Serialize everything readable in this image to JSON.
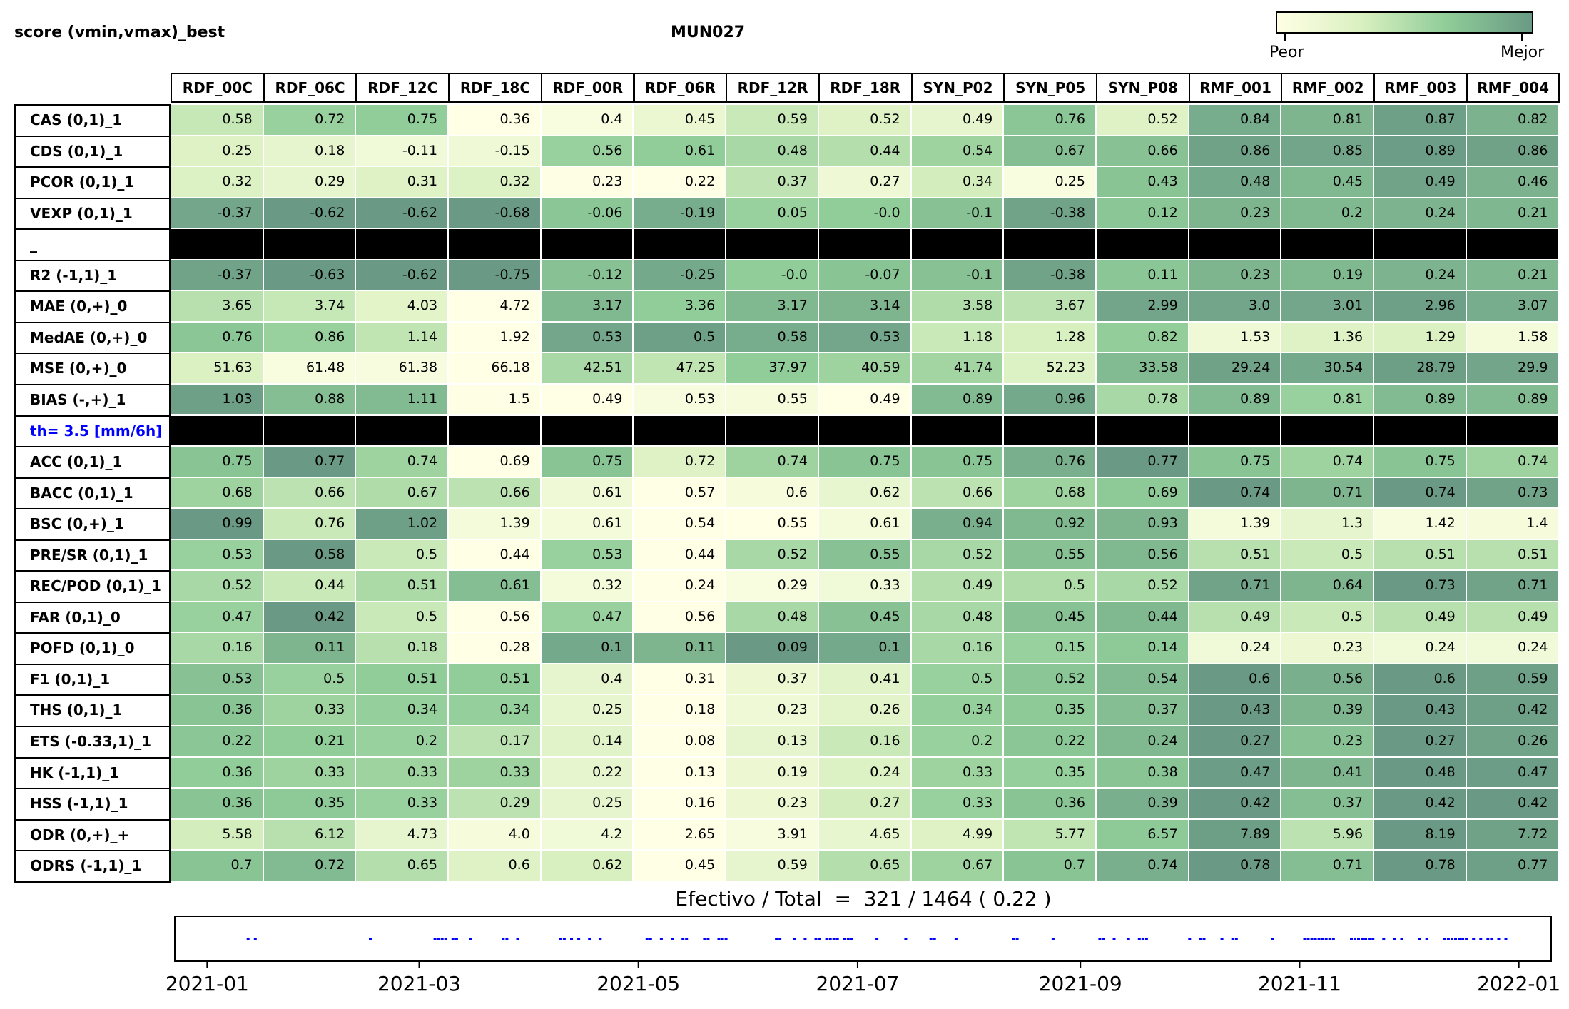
{
  "header": {
    "left_title": "score (vmin,vmax)_best",
    "center_title": "MUN027"
  },
  "colorbar": {
    "low_label": "Peor",
    "high_label": "Mejor",
    "colors": [
      "#ffffe5",
      "#d9f0c0",
      "#8fcc98",
      "#6a9a85"
    ]
  },
  "chart_data": {
    "type": "heatmap",
    "columns": [
      "RDF_00C",
      "RDF_06C",
      "RDF_12C",
      "RDF_18C",
      "RDF_00R",
      "RDF_06R",
      "RDF_12R",
      "RDF_18R",
      "SYN_P02",
      "SYN_P05",
      "SYN_P08",
      "RMF_001",
      "RMF_002",
      "RMF_003",
      "RMF_004"
    ],
    "rows": [
      {
        "label": "CAS (0,1)_1",
        "values": [
          "0.58",
          "0.72",
          "0.75",
          "0.36",
          "0.4",
          "0.45",
          "0.59",
          "0.52",
          "0.49",
          "0.76",
          "0.52",
          "0.84",
          "0.81",
          "0.87",
          "0.82"
        ],
        "shades": [
          0.42,
          0.62,
          0.66,
          0.0,
          0.05,
          0.18,
          0.4,
          0.28,
          0.22,
          0.7,
          0.28,
          0.88,
          0.82,
          0.96,
          0.84
        ]
      },
      {
        "label": "CDS (0,1)_1",
        "values": [
          "0.25",
          "0.18",
          "-0.11",
          "-0.15",
          "0.56",
          "0.61",
          "0.48",
          "0.44",
          "0.54",
          "0.67",
          "0.66",
          "0.86",
          "0.85",
          "0.89",
          "0.86"
        ],
        "shades": [
          0.28,
          0.22,
          0.12,
          0.14,
          0.62,
          0.66,
          0.56,
          0.5,
          0.6,
          0.76,
          0.74,
          0.95,
          0.93,
          0.98,
          0.95
        ]
      },
      {
        "label": "PCOR (0,1)_1",
        "values": [
          "0.32",
          "0.29",
          "0.31",
          "0.32",
          "0.23",
          "0.22",
          "0.37",
          "0.27",
          "0.34",
          "0.25",
          "0.43",
          "0.48",
          "0.45",
          "0.49",
          "0.46"
        ],
        "shades": [
          0.3,
          0.22,
          0.28,
          0.3,
          0.02,
          0.0,
          0.45,
          0.15,
          0.36,
          0.05,
          0.72,
          0.9,
          0.8,
          0.94,
          0.84
        ]
      },
      {
        "label": "VEXP (0,1)_1",
        "values": [
          "-0.37",
          "-0.62",
          "-0.62",
          "-0.68",
          "-0.06",
          "-0.19",
          "0.05",
          "-0.0",
          "-0.1",
          "-0.38",
          "0.12",
          "0.23",
          "0.2",
          "0.24",
          "0.21"
        ],
        "shades": [
          0.92,
          1.0,
          1.0,
          1.0,
          0.7,
          0.88,
          0.62,
          0.66,
          0.74,
          0.94,
          0.7,
          0.82,
          0.8,
          0.83,
          0.81
        ]
      },
      {
        "label": "_",
        "separator": true
      },
      {
        "label": "R2 (-1,1)_1",
        "values": [
          "-0.37",
          "-0.63",
          "-0.62",
          "-0.75",
          "-0.12",
          "-0.25",
          "-0.0",
          "-0.07",
          "-0.1",
          "-0.38",
          "0.11",
          "0.23",
          "0.19",
          "0.24",
          "0.21"
        ],
        "shades": [
          0.94,
          1.0,
          1.0,
          1.0,
          0.74,
          0.9,
          0.66,
          0.72,
          0.74,
          0.94,
          0.7,
          0.82,
          0.8,
          0.83,
          0.81
        ]
      },
      {
        "label": "MAE (0,+)_0",
        "values": [
          "3.65",
          "3.74",
          "4.03",
          "4.72",
          "3.17",
          "3.36",
          "3.17",
          "3.14",
          "3.58",
          "3.67",
          "2.99",
          "3.0",
          "3.01",
          "2.96",
          "3.07"
        ],
        "shades": [
          0.48,
          0.42,
          0.25,
          0.0,
          0.8,
          0.66,
          0.8,
          0.82,
          0.52,
          0.46,
          0.93,
          0.93,
          0.92,
          0.96,
          0.88
        ]
      },
      {
        "label": "MedAE (0,+)_0",
        "values": [
          "0.76",
          "0.86",
          "1.14",
          "1.92",
          "0.53",
          "0.5",
          "0.58",
          "0.53",
          "1.18",
          "1.28",
          "0.82",
          "1.53",
          "1.36",
          "1.29",
          "1.58"
        ],
        "shades": [
          0.7,
          0.62,
          0.44,
          0.0,
          0.92,
          0.96,
          0.88,
          0.92,
          0.4,
          0.34,
          0.65,
          0.14,
          0.28,
          0.32,
          0.1
        ]
      },
      {
        "label": "MSE (0,+)_0",
        "values": [
          "51.63",
          "61.48",
          "61.38",
          "66.18",
          "42.51",
          "47.25",
          "37.97",
          "40.59",
          "41.74",
          "52.23",
          "33.58",
          "29.24",
          "30.54",
          "28.79",
          "29.9"
        ],
        "shades": [
          0.32,
          0.05,
          0.06,
          0.0,
          0.56,
          0.44,
          0.66,
          0.6,
          0.58,
          0.3,
          0.78,
          0.95,
          0.9,
          0.97,
          0.93
        ]
      },
      {
        "label": "BIAS (-,+)_1",
        "values": [
          "1.03",
          "0.88",
          "1.11",
          "1.5",
          "0.49",
          "0.53",
          "0.55",
          "0.49",
          "0.89",
          "0.96",
          "0.78",
          "0.89",
          "0.81",
          "0.89",
          "0.89"
        ],
        "shades": [
          0.96,
          0.76,
          0.78,
          0.02,
          0.0,
          0.06,
          0.08,
          0.0,
          0.78,
          0.9,
          0.56,
          0.78,
          0.62,
          0.78,
          0.78
        ]
      },
      {
        "label": "th= 3.5 [mm/6h]",
        "separator": true,
        "highlight": true
      },
      {
        "label": "ACC (0,1)_1",
        "values": [
          "0.75",
          "0.77",
          "0.74",
          "0.69",
          "0.75",
          "0.72",
          "0.74",
          "0.75",
          "0.75",
          "0.76",
          "0.77",
          "0.75",
          "0.74",
          "0.75",
          "0.74"
        ],
        "shades": [
          0.72,
          1.0,
          0.6,
          0.0,
          0.72,
          0.28,
          0.6,
          0.72,
          0.72,
          0.86,
          1.0,
          0.72,
          0.6,
          0.72,
          0.6
        ]
      },
      {
        "label": "BACC (0,1)_1",
        "values": [
          "0.68",
          "0.66",
          "0.67",
          "0.66",
          "0.61",
          "0.57",
          "0.6",
          "0.62",
          "0.66",
          "0.68",
          "0.69",
          "0.74",
          "0.71",
          "0.74",
          "0.73"
        ],
        "shades": [
          0.6,
          0.46,
          0.52,
          0.46,
          0.14,
          0.0,
          0.08,
          0.2,
          0.46,
          0.6,
          0.68,
          1.0,
          0.82,
          1.0,
          0.94
        ]
      },
      {
        "label": "BSC (0,+)_1",
        "values": [
          "0.99",
          "0.76",
          "1.02",
          "1.39",
          "0.61",
          "0.54",
          "0.55",
          "0.61",
          "0.94",
          "0.92",
          "0.93",
          "1.39",
          "1.3",
          "1.42",
          "1.4"
        ],
        "shades": [
          1.0,
          0.4,
          0.96,
          0.1,
          0.1,
          0.0,
          0.0,
          0.1,
          0.86,
          0.8,
          0.82,
          0.1,
          0.22,
          0.06,
          0.08
        ]
      },
      {
        "label": "PRE/SR (0,1)_1",
        "values": [
          "0.53",
          "0.58",
          "0.5",
          "0.44",
          "0.53",
          "0.44",
          "0.52",
          "0.55",
          "0.52",
          "0.55",
          "0.56",
          "0.51",
          "0.5",
          "0.51",
          "0.51"
        ],
        "shades": [
          0.62,
          1.0,
          0.4,
          0.0,
          0.62,
          0.0,
          0.56,
          0.74,
          0.56,
          0.74,
          0.8,
          0.48,
          0.4,
          0.48,
          0.48
        ]
      },
      {
        "label": "REC/POD (0,1)_1",
        "values": [
          "0.52",
          "0.44",
          "0.51",
          "0.61",
          "0.32",
          "0.24",
          "0.29",
          "0.33",
          "0.49",
          "0.5",
          "0.52",
          "0.71",
          "0.64",
          "0.73",
          "0.71"
        ],
        "shades": [
          0.56,
          0.4,
          0.54,
          0.76,
          0.1,
          0.0,
          0.05,
          0.12,
          0.5,
          0.52,
          0.56,
          0.94,
          0.82,
          1.0,
          0.94
        ]
      },
      {
        "label": "FAR (0,1)_0",
        "values": [
          "0.47",
          "0.42",
          "0.5",
          "0.56",
          "0.47",
          "0.56",
          "0.48",
          "0.45",
          "0.48",
          "0.45",
          "0.44",
          "0.49",
          "0.5",
          "0.49",
          "0.49"
        ],
        "shades": [
          0.62,
          1.0,
          0.4,
          0.0,
          0.62,
          0.0,
          0.56,
          0.74,
          0.56,
          0.74,
          0.8,
          0.48,
          0.4,
          0.48,
          0.48
        ]
      },
      {
        "label": "POFD (0,1)_0",
        "values": [
          "0.16",
          "0.11",
          "0.18",
          "0.28",
          "0.1",
          "0.11",
          "0.09",
          "0.1",
          "0.16",
          "0.15",
          "0.14",
          "0.24",
          "0.23",
          "0.24",
          "0.24"
        ],
        "shades": [
          0.56,
          0.82,
          0.48,
          0.0,
          0.9,
          0.82,
          1.0,
          0.9,
          0.56,
          0.62,
          0.68,
          0.12,
          0.16,
          0.12,
          0.12
        ]
      },
      {
        "label": "F1 (0,1)_1",
        "values": [
          "0.53",
          "0.5",
          "0.51",
          "0.51",
          "0.4",
          "0.31",
          "0.37",
          "0.41",
          "0.5",
          "0.52",
          "0.54",
          "0.6",
          "0.56",
          "0.6",
          "0.59"
        ],
        "shades": [
          0.74,
          0.62,
          0.66,
          0.66,
          0.22,
          0.0,
          0.16,
          0.26,
          0.62,
          0.7,
          0.78,
          1.0,
          0.86,
          1.0,
          0.96
        ]
      },
      {
        "label": "THS (0,1)_1",
        "values": [
          "0.36",
          "0.33",
          "0.34",
          "0.34",
          "0.25",
          "0.18",
          "0.23",
          "0.26",
          "0.34",
          "0.35",
          "0.37",
          "0.43",
          "0.39",
          "0.43",
          "0.42"
        ],
        "shades": [
          0.72,
          0.6,
          0.64,
          0.64,
          0.2,
          0.0,
          0.14,
          0.24,
          0.64,
          0.68,
          0.76,
          1.0,
          0.82,
          1.0,
          0.96
        ]
      },
      {
        "label": "ETS (-0.33,1)_1",
        "values": [
          "0.22",
          "0.21",
          "0.2",
          "0.17",
          "0.14",
          "0.08",
          "0.13",
          "0.16",
          "0.2",
          "0.22",
          "0.24",
          "0.27",
          "0.23",
          "0.27",
          "0.26"
        ],
        "shades": [
          0.7,
          0.66,
          0.62,
          0.46,
          0.26,
          0.0,
          0.22,
          0.4,
          0.62,
          0.7,
          0.8,
          1.0,
          0.74,
          1.0,
          0.94
        ]
      },
      {
        "label": "HK (-1,1)_1",
        "values": [
          "0.36",
          "0.33",
          "0.33",
          "0.33",
          "0.22",
          "0.13",
          "0.19",
          "0.24",
          "0.33",
          "0.35",
          "0.38",
          "0.47",
          "0.41",
          "0.48",
          "0.47"
        ],
        "shades": [
          0.66,
          0.6,
          0.6,
          0.6,
          0.22,
          0.0,
          0.16,
          0.3,
          0.6,
          0.64,
          0.72,
          0.98,
          0.82,
          1.0,
          0.98
        ]
      },
      {
        "label": "HSS (-1,1)_1",
        "values": [
          "0.36",
          "0.35",
          "0.33",
          "0.29",
          "0.25",
          "0.16",
          "0.23",
          "0.27",
          "0.33",
          "0.36",
          "0.39",
          "0.42",
          "0.37",
          "0.42",
          "0.42"
        ],
        "shades": [
          0.72,
          0.68,
          0.62,
          0.46,
          0.22,
          0.0,
          0.16,
          0.36,
          0.62,
          0.72,
          0.86,
          1.0,
          0.76,
          1.0,
          1.0
        ]
      },
      {
        "label": "ODR (0,+)_+",
        "values": [
          "5.58",
          "6.12",
          "4.73",
          "4.0",
          "4.2",
          "2.65",
          "3.91",
          "4.65",
          "4.99",
          "5.77",
          "6.57",
          "7.89",
          "5.96",
          "8.19",
          "7.72"
        ],
        "shades": [
          0.36,
          0.48,
          0.22,
          0.08,
          0.12,
          0.0,
          0.06,
          0.2,
          0.28,
          0.44,
          0.68,
          0.97,
          0.46,
          1.0,
          0.95
        ]
      },
      {
        "label": "ODRS (-1,1)_1",
        "values": [
          "0.7",
          "0.72",
          "0.65",
          "0.6",
          "0.62",
          "0.45",
          "0.59",
          "0.65",
          "0.67",
          "0.7",
          "0.74",
          "0.78",
          "0.71",
          "0.78",
          "0.77"
        ],
        "shades": [
          0.72,
          0.78,
          0.5,
          0.28,
          0.34,
          0.0,
          0.22,
          0.5,
          0.6,
          0.72,
          0.86,
          1.0,
          0.76,
          1.0,
          0.96
        ]
      }
    ]
  },
  "summary": {
    "text": "Efectivo / Total  =  321 / 1464 ( 0.22 )"
  },
  "timeline": {
    "tick_labels": [
      "2021-01",
      "2021-03",
      "2021-05",
      "2021-07",
      "2021-09",
      "2021-11",
      "2022-01"
    ],
    "tick_dates": [
      "2021-01-01",
      "2021-03-01",
      "2021-05-01",
      "2021-07-01",
      "2021-09-01",
      "2021-11-01",
      "2022-01-01"
    ],
    "range": [
      "2020-12-23",
      "2022-01-10"
    ],
    "mark_color": "#0000ff",
    "effective_dates": [
      "2021-01-12",
      "2021-01-14",
      "2021-02-15",
      "2021-03-05",
      "2021-03-06",
      "2021-03-07",
      "2021-03-08",
      "2021-03-10",
      "2021-03-11",
      "2021-03-15",
      "2021-03-24",
      "2021-03-25",
      "2021-03-28",
      "2021-04-09",
      "2021-04-10",
      "2021-04-12",
      "2021-04-14",
      "2021-04-17",
      "2021-04-20",
      "2021-05-03",
      "2021-05-04",
      "2021-05-07",
      "2021-05-10",
      "2021-05-13",
      "2021-05-14",
      "2021-05-19",
      "2021-05-20",
      "2021-05-23",
      "2021-05-24",
      "2021-05-25",
      "2021-06-08",
      "2021-06-09",
      "2021-06-13",
      "2021-06-16",
      "2021-06-19",
      "2021-06-20",
      "2021-06-22",
      "2021-06-23",
      "2021-06-24",
      "2021-06-25",
      "2021-06-27",
      "2021-06-28",
      "2021-06-29",
      "2021-07-06",
      "2021-07-14",
      "2021-07-21",
      "2021-07-22",
      "2021-07-28",
      "2021-08-13",
      "2021-08-14",
      "2021-08-24",
      "2021-09-06",
      "2021-09-07",
      "2021-09-10",
      "2021-09-14",
      "2021-09-17",
      "2021-09-18",
      "2021-09-19",
      "2021-10-01",
      "2021-10-04",
      "2021-10-05",
      "2021-10-10",
      "2021-10-13",
      "2021-10-14",
      "2021-10-24",
      "2021-11-02",
      "2021-11-03",
      "2021-11-04",
      "2021-11-05",
      "2021-11-06",
      "2021-11-07",
      "2021-11-08",
      "2021-11-09",
      "2021-11-10",
      "2021-11-15",
      "2021-11-16",
      "2021-11-17",
      "2021-11-18",
      "2021-11-19",
      "2021-11-20",
      "2021-11-21",
      "2021-11-24",
      "2021-11-27",
      "2021-11-29",
      "2021-12-04",
      "2021-12-06",
      "2021-12-11",
      "2021-12-12",
      "2021-12-13",
      "2021-12-14",
      "2021-12-15",
      "2021-12-16",
      "2021-12-17",
      "2021-12-19",
      "2021-12-21",
      "2021-12-23",
      "2021-12-24",
      "2021-12-26",
      "2021-12-28"
    ]
  }
}
